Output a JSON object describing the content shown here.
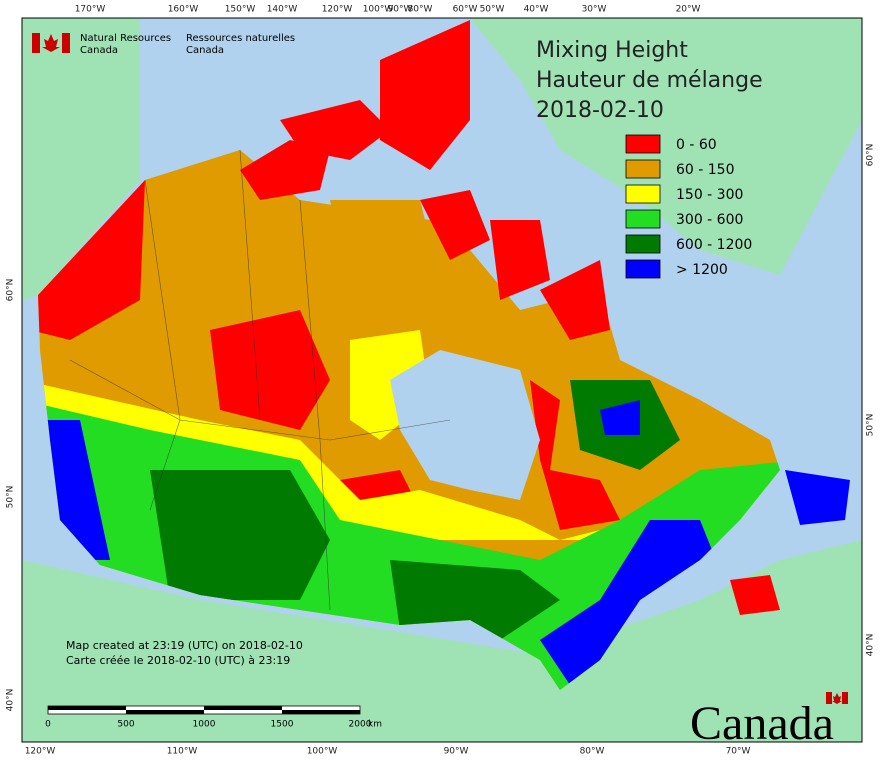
{
  "header": {
    "agency_en": [
      "Natural Resources",
      "Canada"
    ],
    "agency_fr": [
      "Ressources naturelles",
      "Canada"
    ]
  },
  "title": [
    "Mixing Height",
    "Hauteur de mélange",
    "2018-02-10"
  ],
  "legend": [
    {
      "label": "0 - 60",
      "color": "#ff0000"
    },
    {
      "label": "60 - 150",
      "color": "#e09b00"
    },
    {
      "label": "150 - 300",
      "color": "#ffff00"
    },
    {
      "label": "300 - 600",
      "color": "#22dd22"
    },
    {
      "label": "600 - 1200",
      "color": "#007a00"
    },
    {
      "label": "> 1200",
      "color": "#0000ff"
    }
  ],
  "top_longitudes": [
    "170°W",
    "160°W",
    "150°W",
    "140°W",
    "120°W",
    "100°W",
    "90°W",
    "80°W",
    "60°W",
    "50°W",
    "40°W",
    "30°W",
    "20°W"
  ],
  "bottom_longitudes": [
    "120°W",
    "110°W",
    "100°W",
    "90°W",
    "80°W",
    "70°W"
  ],
  "left_latitudes": [
    "60°N",
    "50°N",
    "40°N"
  ],
  "right_latitudes": [
    "60°N",
    "50°N",
    "40°N"
  ],
  "credit": [
    "Map created at 23:19 (UTC) on 2018-02-10",
    "Carte créée le 2018-02-10 (UTC) à 23:19"
  ],
  "scale_bar": {
    "labels": [
      0,
      500,
      1000,
      1500,
      2000
    ],
    "unit": "km"
  },
  "wordmark": "Canada"
}
